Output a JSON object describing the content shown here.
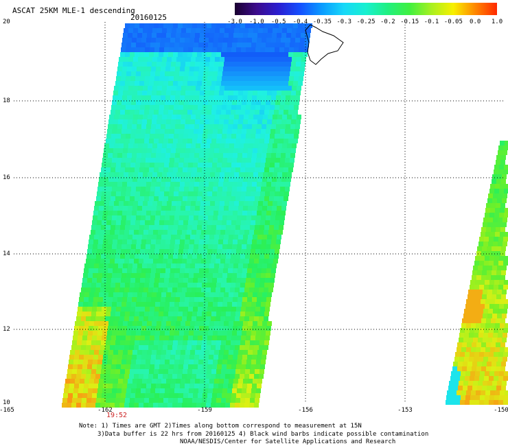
{
  "title": "ASCAT 25KM MLE-1 descending",
  "date": "20160125",
  "colorbar": {
    "labels": [
      "-3.0",
      "-1.0",
      "-0.5",
      "-0.4",
      "-0.35",
      "-0.3",
      "-0.25",
      "-0.2",
      "-0.15",
      "-0.1",
      "-0.05",
      "0.0",
      "1.0"
    ],
    "colors": [
      "#1a0030",
      "#3c0b8c",
      "#2a1ed0",
      "#1450ff",
      "#0a9cff",
      "#18d8f8",
      "#18f0d0",
      "#20f080",
      "#40f040",
      "#a8f020",
      "#f8f000",
      "#ff8800",
      "#ff2800"
    ]
  },
  "axes": {
    "lat_labels": [
      "20",
      "18",
      "16",
      "14",
      "12",
      "10"
    ],
    "lon_labels": [
      "-165",
      "-162",
      "-159",
      "-156",
      "-153",
      "-150"
    ]
  },
  "pass_time": "19:52",
  "notes": {
    "line1": "Note: 1) Times are GMT 2)Times along bottom correspond to measurement at 15N",
    "line2": "3)Data buffer is 22 hrs from 20160125 4) Black wind barbs indicate possible contamination",
    "line3": "NOAA/NESDIS/Center for Satellite Applications and Research"
  }
}
